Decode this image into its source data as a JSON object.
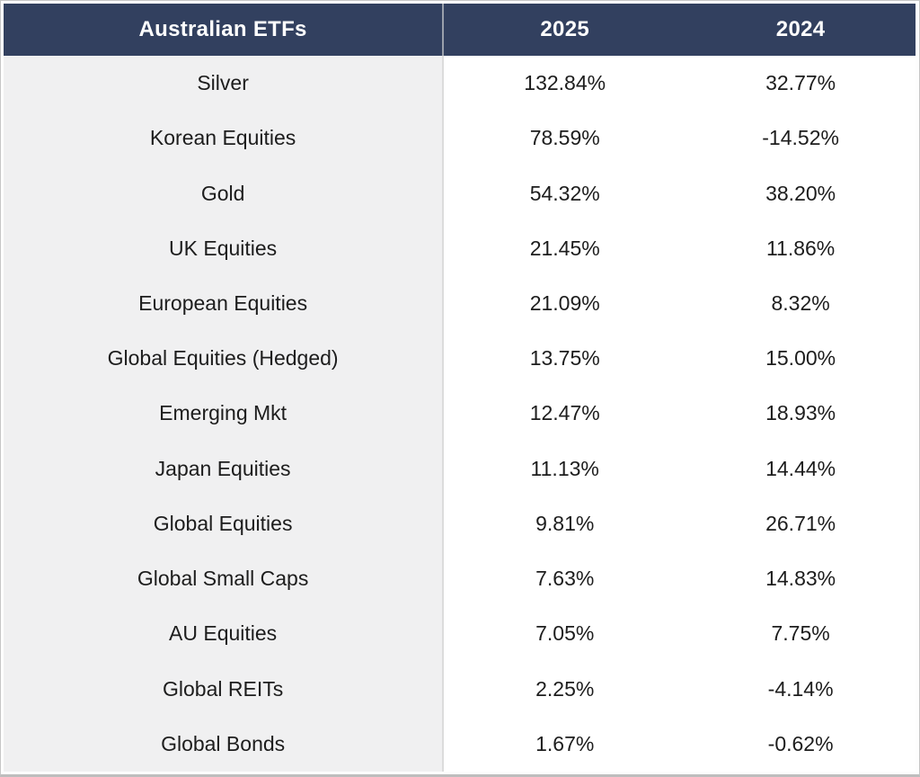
{
  "table": {
    "header": {
      "col1": "Australian ETFs",
      "col2": "2025",
      "col3": "2024"
    },
    "rows": [
      {
        "label": "Silver",
        "y2025": "132.84%",
        "y2024": "32.77%"
      },
      {
        "label": "Korean Equities",
        "y2025": "78.59%",
        "y2024": "-14.52%"
      },
      {
        "label": "Gold",
        "y2025": "54.32%",
        "y2024": "38.20%"
      },
      {
        "label": "UK Equities",
        "y2025": "21.45%",
        "y2024": "11.86%"
      },
      {
        "label": "European Equities",
        "y2025": "21.09%",
        "y2024": "8.32%"
      },
      {
        "label": "Global Equities (Hedged)",
        "y2025": "13.75%",
        "y2024": "15.00%"
      },
      {
        "label": "Emerging Mkt",
        "y2025": "12.47%",
        "y2024": "18.93%"
      },
      {
        "label": "Japan Equities",
        "y2025": "11.13%",
        "y2024": "14.44%"
      },
      {
        "label": "Global Equities",
        "y2025": "9.81%",
        "y2024": "26.71%"
      },
      {
        "label": "Global Small Caps",
        "y2025": "7.63%",
        "y2024": "14.83%"
      },
      {
        "label": "AU Equities",
        "y2025": "7.05%",
        "y2024": "7.75%"
      },
      {
        "label": "Global REITs",
        "y2025": "2.25%",
        "y2024": "-4.14%"
      },
      {
        "label": "Global Bonds",
        "y2025": "1.67%",
        "y2024": "-0.62%"
      }
    ]
  },
  "colors": {
    "header_bg": "#32405F",
    "header_text": "#FFFFFF",
    "label_column_bg": "#F0F0F1",
    "value_column_bg": "#FFFFFF",
    "body_text": "#1D1D1D",
    "frame_border": "#C6C6C6",
    "column_divider": "#DCDCDC"
  },
  "chart_data": {
    "type": "table",
    "title": "Australian ETFs",
    "categories": [
      "Silver",
      "Korean Equities",
      "Gold",
      "UK Equities",
      "European Equities",
      "Global Equities (Hedged)",
      "Emerging Mkt",
      "Japan Equities",
      "Global Equities",
      "Global Small Caps",
      "AU Equities",
      "Global REITs",
      "Global Bonds"
    ],
    "series": [
      {
        "name": "2025",
        "values": [
          132.84,
          78.59,
          54.32,
          21.45,
          21.09,
          13.75,
          12.47,
          11.13,
          9.81,
          7.63,
          7.05,
          2.25,
          1.67
        ]
      },
      {
        "name": "2024",
        "values": [
          32.77,
          -14.52,
          38.2,
          11.86,
          8.32,
          15.0,
          18.93,
          14.44,
          26.71,
          14.83,
          7.75,
          -4.14,
          -0.62
        ]
      }
    ],
    "unit": "%",
    "sort_order": "descending by 2025 value"
  }
}
